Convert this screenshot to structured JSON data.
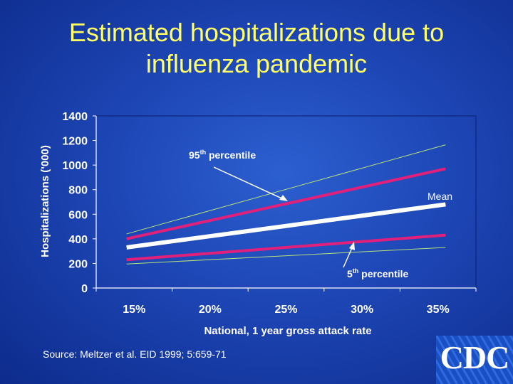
{
  "title_line1": "Estimated hospitalizations due to",
  "title_line2": "influenza pandemic",
  "source": "Source: Meltzer et al. EID 1999; 5:659-71",
  "logo_text": "CDC",
  "annotations": {
    "p95_sup": "th",
    "p95_text": " percentile",
    "p95_num": "95",
    "p5_num": "5",
    "p5_sup": "th",
    "p5_text": " percentile",
    "mean": "Mean"
  },
  "colors": {
    "background": "#1d45b4",
    "title": "#ffff66",
    "mean_line": "#ffffff",
    "inner_band": "#e0207a",
    "outer_band": "#b8e07a",
    "plot_border": "#0a1f6e"
  },
  "chart_data": {
    "type": "line",
    "title": "Estimated hospitalizations due to influenza pandemic",
    "xlabel": "National, 1 year gross attack rate",
    "ylabel": "Hospitalizations ('000)",
    "categories": [
      "15%",
      "20%",
      "25%",
      "30%",
      "35%"
    ],
    "x": [
      15,
      20,
      25,
      30,
      35
    ],
    "ylim": [
      0,
      1400
    ],
    "yticks": [
      0,
      200,
      400,
      600,
      800,
      1000,
      1200,
      1400
    ],
    "grid": false,
    "series": [
      {
        "x": [
          14.5,
          35.5
        ],
        "y": [
          440,
          1165
        ],
        "color": "#b8e07a"
      },
      {
        "x": [
          14.5,
          35.5
        ],
        "y": [
          400,
          970
        ],
        "color": "#e0207a"
      },
      {
        "x": [
          14.5,
          35.5
        ],
        "y": [
          330,
          680
        ],
        "color": "#ffffff",
        "name": "Mean"
      },
      {
        "x": [
          14.5,
          35.5
        ],
        "y": [
          230,
          430
        ],
        "color": "#e0207a"
      },
      {
        "x": [
          14.5,
          35.5
        ],
        "y": [
          195,
          330
        ],
        "color": "#b8e07a"
      }
    ]
  }
}
